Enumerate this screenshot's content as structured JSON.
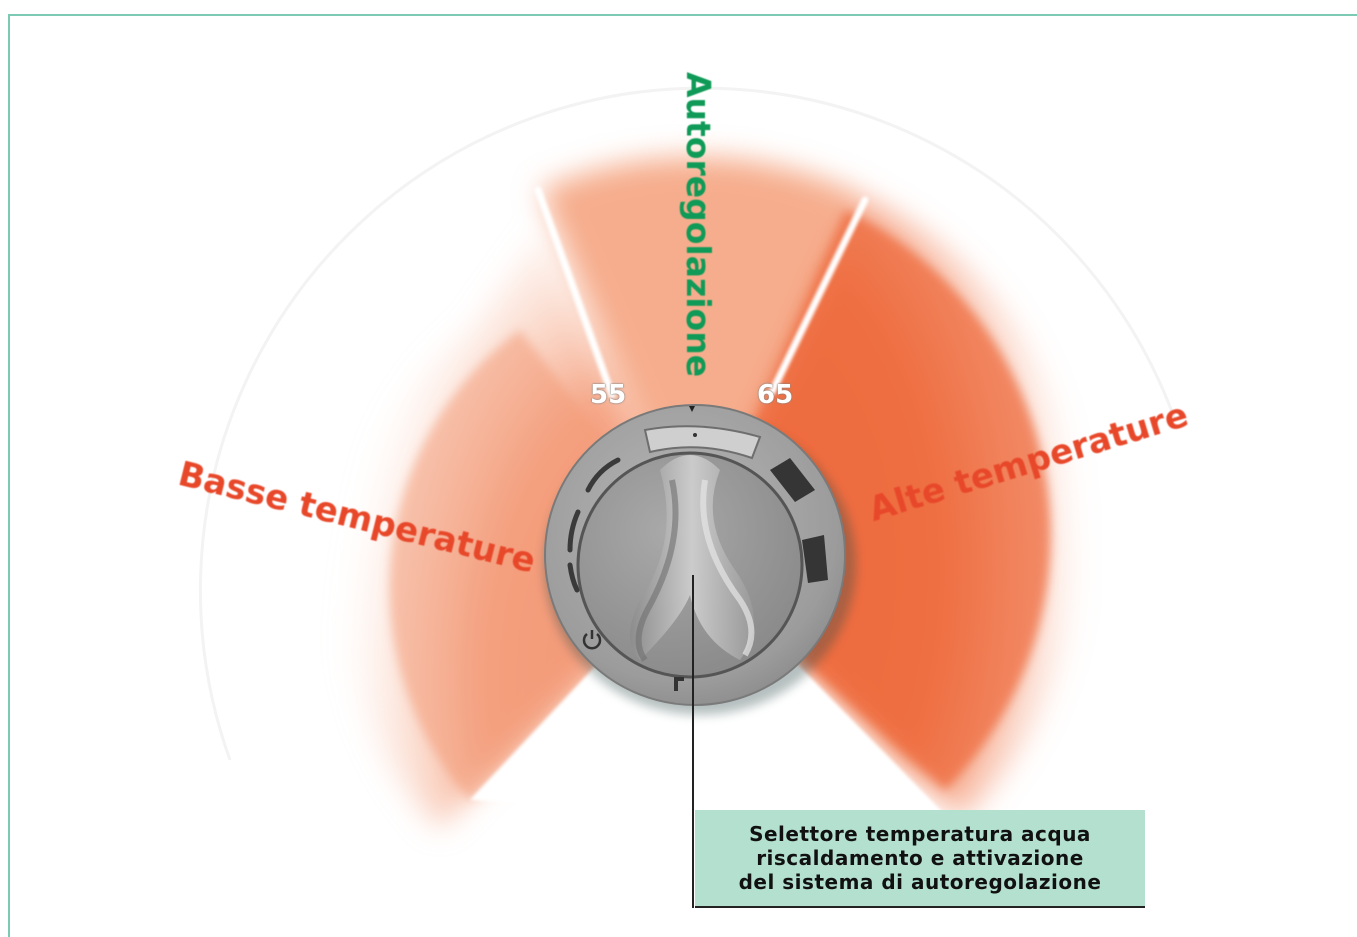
{
  "diagram": {
    "labels": {
      "left_zone": "Basse temperature",
      "right_zone": "Alte temperature",
      "top_zone": "Autoregolazione"
    },
    "scale": {
      "low_mark": "55",
      "high_mark": "65"
    },
    "callout": {
      "line1": "Selettore temperatura acqua",
      "line2": "riscaldamento e attivazione",
      "line3": "del sistema di autoregolazione"
    },
    "colors": {
      "frame": "#7cc9b4",
      "warm": "#e8482a",
      "green_text": "#0f9a57",
      "callout_bg": "#b4e0d0",
      "knob_body": "#9a9a9a"
    },
    "icons": {
      "power": "power-icon",
      "radiator": "radiator-icon",
      "pointer": "pointer-triangle-icon"
    }
  }
}
